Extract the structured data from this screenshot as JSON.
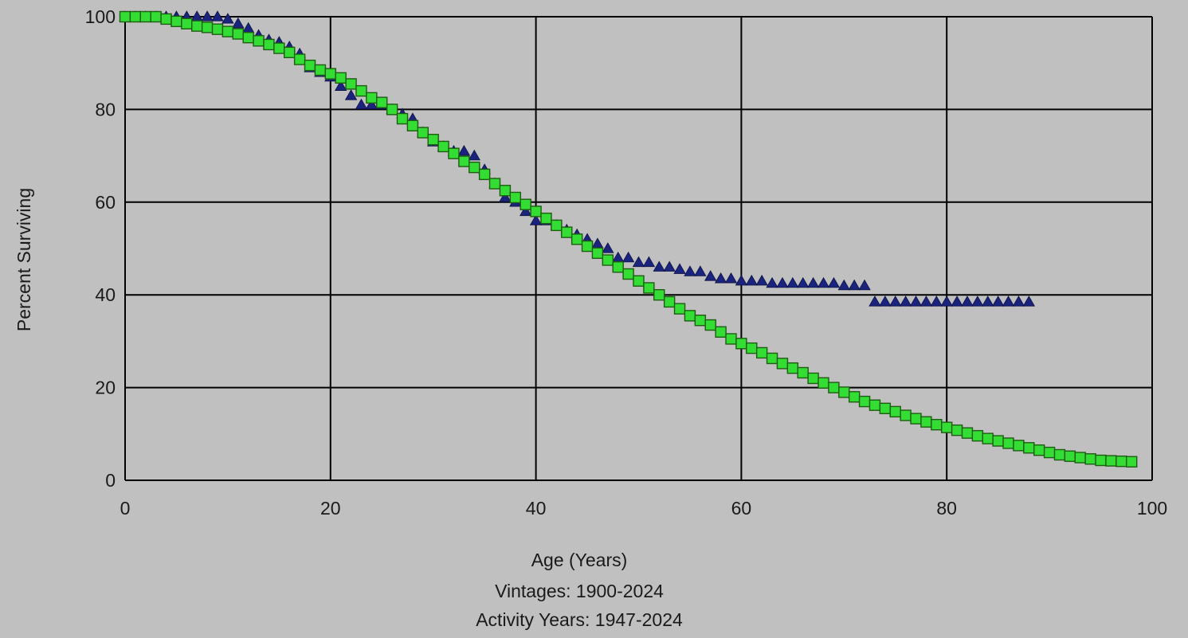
{
  "chart_data": {
    "type": "scatter",
    "title": "",
    "xlabel": "Age (Years)",
    "ylabel": "Percent Surviving",
    "subtitle_lines": [
      "Vintages: 1900-2024",
      "Activity Years: 1947-2024"
    ],
    "xlim": [
      0,
      100
    ],
    "ylim": [
      0,
      100
    ],
    "x_ticks": [
      0,
      20,
      40,
      60,
      80,
      100
    ],
    "y_ticks": [
      0,
      20,
      40,
      60,
      80,
      100
    ],
    "grid": true,
    "colors": {
      "background": "#c0c0c0",
      "grid": "#000000",
      "triangle_fill": "#1a237e",
      "square_fill": "#33dd33",
      "square_stroke": "#1e5c12"
    },
    "series": [
      {
        "marker": "triangle",
        "x": [
          0,
          1,
          2,
          3,
          4,
          5,
          6,
          7,
          8,
          9,
          10,
          11,
          12,
          13,
          14,
          15,
          16,
          17,
          18,
          19,
          20,
          21,
          22,
          23,
          24,
          25,
          26,
          27,
          28,
          29,
          30,
          31,
          32,
          33,
          34,
          35,
          36,
          37,
          38,
          39,
          40,
          41,
          42,
          43,
          44,
          45,
          46,
          47,
          48,
          49,
          50,
          51,
          52,
          53,
          54,
          55,
          56,
          57,
          58,
          59,
          60,
          61,
          62,
          63,
          64,
          65,
          66,
          67,
          68,
          69,
          70,
          71,
          72,
          73,
          74,
          75,
          76,
          77,
          78,
          79,
          80,
          81,
          82,
          83,
          84,
          85,
          86,
          87,
          88
        ],
        "y": [
          100,
          100,
          100,
          100,
          100,
          100,
          100,
          100,
          100,
          100,
          99.5,
          98.5,
          97.5,
          96,
          95,
          94.5,
          93.5,
          92,
          89,
          88,
          87,
          85,
          83,
          81,
          81,
          81,
          80,
          79,
          78,
          75,
          73,
          72,
          71,
          71,
          70,
          67,
          64,
          61,
          60,
          58,
          56,
          56,
          55,
          54,
          53,
          52,
          51,
          50,
          48,
          48,
          47,
          47,
          46,
          46,
          45.5,
          45,
          45,
          44,
          43.5,
          43.5,
          43,
          43,
          43,
          42.5,
          42.5,
          42.5,
          42.5,
          42.5,
          42.5,
          42.5,
          42,
          42,
          42,
          38.5,
          38.5,
          38.5,
          38.5,
          38.5,
          38.5,
          38.5,
          38.5,
          38.5,
          38.5,
          38.5,
          38.5,
          38.5,
          38.5,
          38.5,
          38.5
        ]
      },
      {
        "marker": "square",
        "x": [
          0,
          1,
          2,
          3,
          4,
          5,
          6,
          7,
          8,
          9,
          10,
          11,
          12,
          13,
          14,
          15,
          16,
          17,
          18,
          19,
          20,
          21,
          22,
          23,
          24,
          25,
          26,
          27,
          28,
          29,
          30,
          31,
          32,
          33,
          34,
          35,
          36,
          37,
          38,
          39,
          40,
          41,
          42,
          43,
          44,
          45,
          46,
          47,
          48,
          49,
          50,
          51,
          52,
          53,
          54,
          55,
          56,
          57,
          58,
          59,
          60,
          61,
          62,
          63,
          64,
          65,
          66,
          67,
          68,
          69,
          70,
          71,
          72,
          73,
          74,
          75,
          76,
          77,
          78,
          79,
          80,
          81,
          82,
          83,
          84,
          85,
          86,
          87,
          88,
          89,
          90,
          91,
          92,
          93,
          94,
          95,
          96,
          97,
          98
        ],
        "y": [
          100,
          100,
          100,
          100,
          99.5,
          99,
          98.5,
          98,
          97.7,
          97.3,
          96.8,
          96.3,
          95.5,
          94.8,
          94,
          93.2,
          92.3,
          90.8,
          89.5,
          88.5,
          87.7,
          86.8,
          85.5,
          84,
          82.5,
          81.5,
          80,
          78,
          76.5,
          75,
          73.5,
          72,
          70.5,
          68.8,
          67.5,
          66,
          64,
          62.5,
          61,
          59.5,
          58,
          56.5,
          55,
          53.5,
          52,
          50.5,
          49,
          47.5,
          46,
          44.5,
          43,
          41.5,
          40,
          38.5,
          37,
          35.5,
          34.5,
          33.5,
          32,
          30.5,
          29.5,
          28.5,
          27.5,
          26.3,
          25.2,
          24.2,
          23.2,
          22,
          21,
          20,
          19,
          18,
          17,
          16.2,
          15.5,
          14.8,
          14,
          13.3,
          12.6,
          12,
          11.4,
          10.8,
          10.2,
          9.6,
          9,
          8.5,
          8,
          7.5,
          7,
          6.5,
          6,
          5.5,
          5.2,
          4.9,
          4.6,
          4.3,
          4.2,
          4.1,
          4
        ]
      }
    ]
  }
}
